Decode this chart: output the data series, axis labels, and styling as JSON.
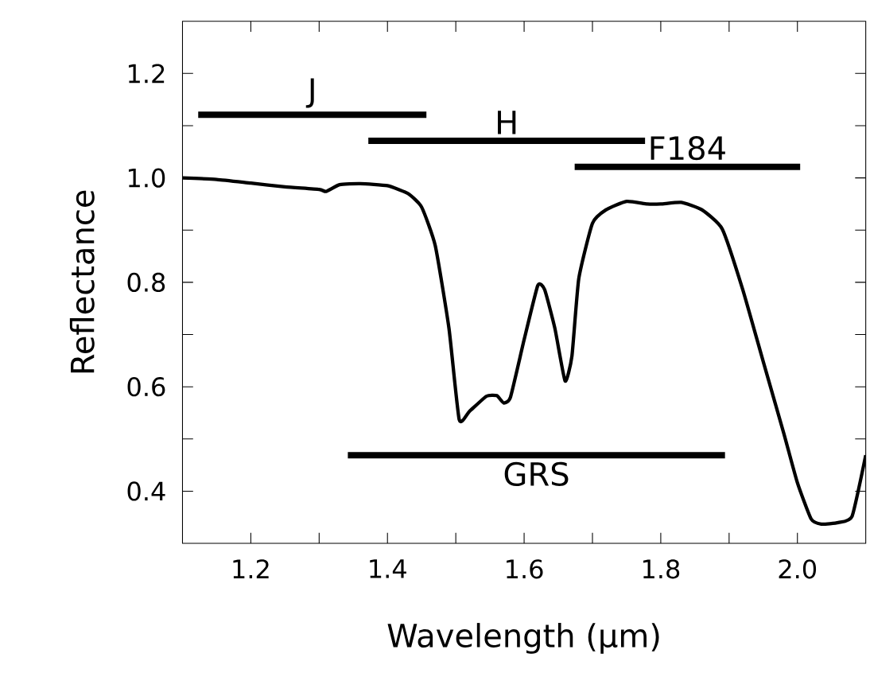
{
  "chart_data": {
    "type": "line",
    "xlabel": "Wavelength (μm)",
    "ylabel": "Reflectance",
    "xlim": [
      1.1,
      2.1
    ],
    "ylim": [
      0.3,
      1.3
    ],
    "xticks": [
      1.2,
      {
        "value": 1.3,
        "label": null
      },
      1.4,
      {
        "value": 1.5,
        "label": null
      },
      1.6,
      {
        "value": 1.7,
        "label": null
      },
      1.8,
      {
        "value": 1.9,
        "label": null
      },
      {
        "value": 2.0,
        "label": "2.0"
      }
    ],
    "yticks": [
      0.4,
      {
        "value": 0.5,
        "label": null
      },
      0.6,
      {
        "value": 0.7,
        "label": null
      },
      0.8,
      {
        "value": 0.9,
        "label": null
      },
      {
        "value": 1.0,
        "label": "1.0"
      },
      {
        "value": 1.1,
        "label": null
      },
      1.2
    ],
    "grid": false,
    "legend": false,
    "marker": "none",
    "line_style": "solid",
    "series": [
      {
        "color": "#000000",
        "x": [
          1.1,
          1.15,
          1.2,
          1.25,
          1.3,
          1.31,
          1.33,
          1.36,
          1.4,
          1.43,
          1.45,
          1.47,
          1.49,
          1.505,
          1.52,
          1.545,
          1.56,
          1.57,
          1.58,
          1.6,
          1.62,
          1.63,
          1.645,
          1.66,
          1.67,
          1.68,
          1.7,
          1.72,
          1.75,
          1.78,
          1.8,
          1.83,
          1.86,
          1.89,
          1.92,
          1.95,
          1.98,
          2.0,
          2.02,
          2.035,
          2.06,
          2.08,
          2.1
        ],
        "values": [
          1.0,
          0.997,
          0.99,
          0.983,
          0.978,
          0.974,
          0.987,
          0.989,
          0.985,
          0.97,
          0.944,
          0.87,
          0.712,
          0.537,
          0.553,
          0.582,
          0.583,
          0.569,
          0.58,
          0.69,
          0.794,
          0.786,
          0.712,
          0.611,
          0.659,
          0.807,
          0.913,
          0.939,
          0.955,
          0.95,
          0.95,
          0.953,
          0.939,
          0.902,
          0.786,
          0.648,
          0.511,
          0.416,
          0.347,
          0.337,
          0.34,
          0.352,
          0.469
        ]
      },
      {
        "name": "J",
        "color": "#000000",
        "x": [
          1.123,
          1.457
        ],
        "values": [
          1.121,
          1.121
        ]
      },
      {
        "name": "H",
        "color": "#000000",
        "x": [
          1.372,
          1.777
        ],
        "values": [
          1.071,
          1.071
        ]
      },
      {
        "name": "F184",
        "color": "#000000",
        "x": [
          1.674,
          2.004
        ],
        "values": [
          1.021,
          1.021
        ]
      },
      {
        "name": "GRS",
        "color": "#000000",
        "x": [
          1.342,
          1.894
        ],
        "values": [
          0.469,
          0.469
        ]
      }
    ]
  }
}
